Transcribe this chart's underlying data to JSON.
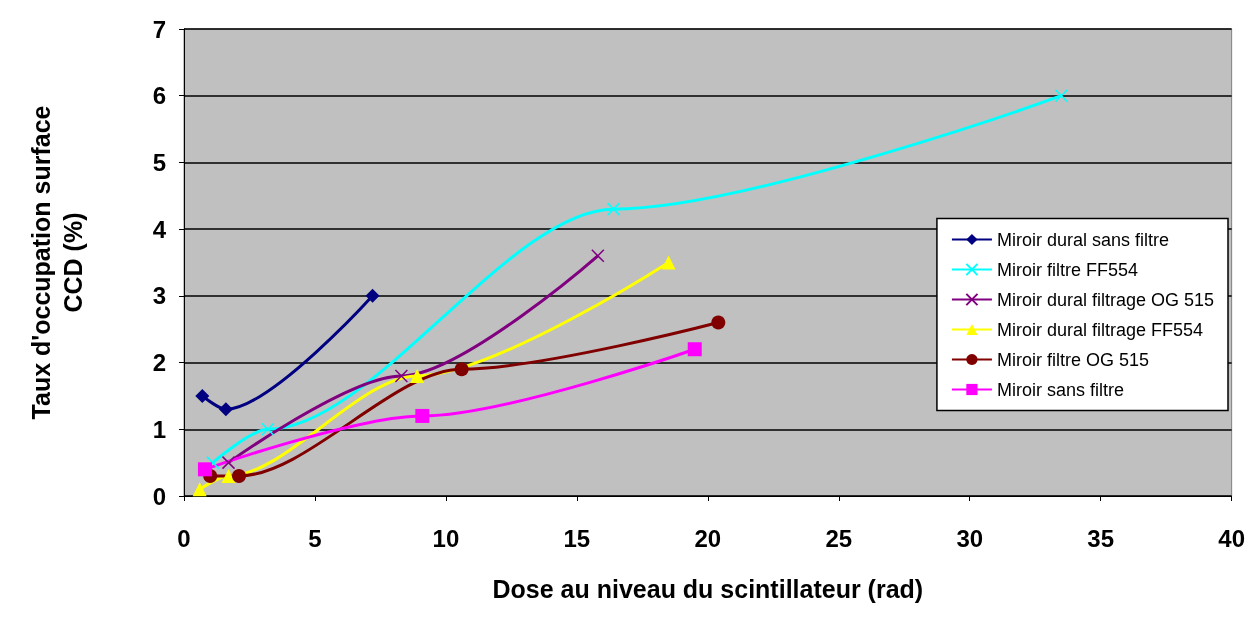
{
  "chart_data": {
    "type": "line",
    "xlabel": "Dose au niveau du scintillateur (rad)",
    "ylabel": "Taux d'occupation surface CCD (%)",
    "xlim": [
      0,
      40
    ],
    "xticks": [
      0,
      5,
      10,
      15,
      20,
      25,
      30,
      35,
      40
    ],
    "ylim": [
      0,
      7
    ],
    "yticks": [
      0,
      1,
      2,
      3,
      4,
      5,
      6,
      7
    ],
    "grid": "y",
    "legend": "right",
    "series": [
      {
        "name": "Miroir dural sans filtre",
        "color": "#000080",
        "marker": "diamond",
        "x": [
          0.7,
          1.6,
          7.2
        ],
        "values": [
          1.5,
          1.3,
          3.0
        ]
      },
      {
        "name": "Miroir filtre FF554",
        "color": "#00ffff",
        "marker": "cross",
        "x": [
          1.1,
          3.2,
          16.4,
          33.5
        ],
        "values": [
          0.5,
          1.0,
          4.3,
          6.0
        ]
      },
      {
        "name": "Miroir dural filtrage OG 515",
        "color": "#800080",
        "marker": "cross",
        "x": [
          1.7,
          8.3,
          15.8
        ],
        "values": [
          0.5,
          1.8,
          3.6
        ]
      },
      {
        "name": "Miroir dural filtrage FF554",
        "color": "#ffff00",
        "marker": "triangle",
        "x": [
          0.6,
          1.7,
          8.9,
          18.5
        ],
        "values": [
          0.1,
          0.3,
          1.8,
          3.5
        ]
      },
      {
        "name": "Miroir filtre OG 515",
        "color": "#800000",
        "marker": "circle",
        "x": [
          1.0,
          2.1,
          10.6,
          20.4
        ],
        "values": [
          0.3,
          0.3,
          1.9,
          2.6
        ]
      },
      {
        "name": "Miroir sans filtre",
        "color": "#ff00ff",
        "marker": "square",
        "x": [
          0.8,
          9.1,
          19.5
        ],
        "values": [
          0.4,
          1.2,
          2.2
        ]
      }
    ]
  }
}
